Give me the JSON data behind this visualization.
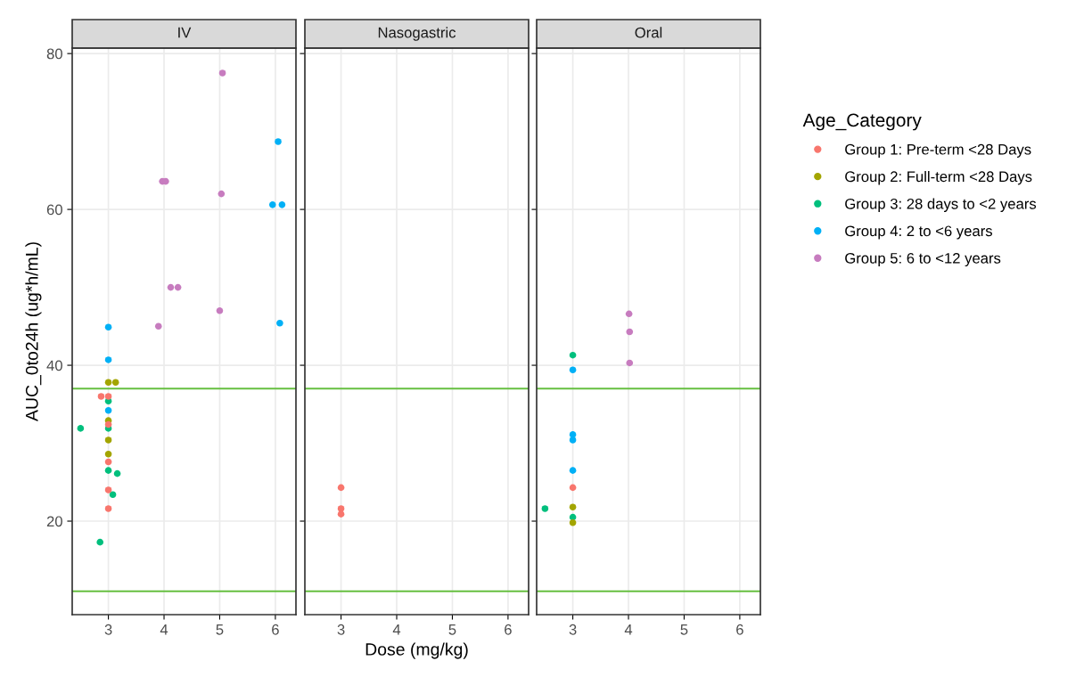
{
  "chart_data": [
    {
      "type": "scatter",
      "title": "IV",
      "ylabel": "AUC_0to24h (ug*h/mL)",
      "xlim": [
        2.35,
        6.37
      ],
      "xticks": [
        3,
        4,
        5,
        6
      ],
      "ylim": [
        8,
        80.7
      ],
      "yticks": [
        20,
        40,
        60,
        80
      ],
      "grid": true,
      "marker": "circle",
      "ref_lines": [
        {
          "axis": "y",
          "value": 37,
          "color": "#66bf40"
        },
        {
          "axis": "y",
          "value": 11,
          "color": "#66bf40"
        }
      ],
      "series": [
        {
          "color": "#f8766d",
          "x": [
            2.87,
            3,
            3,
            3,
            3,
            3
          ],
          "values": [
            36.0,
            36.0,
            32.4,
            27.6,
            24.0,
            21.6
          ]
        },
        {
          "color": "#a3a500",
          "x": [
            3,
            3.13,
            3,
            3,
            3
          ],
          "values": [
            37.8,
            37.8,
            32.9,
            30.4,
            28.6
          ]
        },
        {
          "color": "#00bf7d",
          "x": [
            3,
            3,
            2.5,
            3,
            3.16,
            3.08,
            2.85
          ],
          "values": [
            35.4,
            31.9,
            31.9,
            26.5,
            26.1,
            23.4,
            17.3
          ]
        },
        {
          "color": "#00b0f6",
          "x": [
            6.05,
            5.95,
            6.12,
            6.08,
            3,
            3,
            3
          ],
          "values": [
            68.7,
            60.6,
            60.6,
            45.4,
            44.9,
            40.7,
            34.2
          ]
        },
        {
          "color": "#c77cbf",
          "x": [
            5.05,
            3.97,
            4.03,
            5.03,
            4.12,
            4.25,
            5,
            3.9
          ],
          "values": [
            77.5,
            63.6,
            63.6,
            62,
            50,
            50,
            47,
            45
          ]
        }
      ]
    },
    {
      "type": "scatter",
      "title": "Nasogastric",
      "xlabel": "Dose (mg/kg)",
      "xlim": [
        2.35,
        6.37
      ],
      "xticks": [
        3,
        4,
        5,
        6
      ],
      "ylim": [
        8,
        80.7
      ],
      "yticks": [
        20,
        40,
        60,
        80
      ],
      "tick_labels": "x",
      "grid": true,
      "marker": "circle",
      "ref_lines": [
        {
          "axis": "y",
          "value": 37,
          "color": "#66bf40"
        },
        {
          "axis": "y",
          "value": 11,
          "color": "#66bf40"
        }
      ],
      "series": [
        {
          "color": "#f8766d",
          "x": [
            3,
            3,
            3
          ],
          "values": [
            24.3,
            21.6,
            20.9
          ]
        }
      ]
    },
    {
      "type": "scatter",
      "title": "Oral",
      "legend_title": "Age_Category",
      "legend": "right",
      "xlim": [
        2.35,
        6.37
      ],
      "xticks": [
        3,
        4,
        5,
        6
      ],
      "ylim": [
        8,
        80.7
      ],
      "yticks": [
        20,
        40,
        60,
        80
      ],
      "tick_labels": "x",
      "grid": true,
      "marker": "circle",
      "ref_lines": [
        {
          "axis": "y",
          "value": 37,
          "color": "#66bf40"
        },
        {
          "axis": "y",
          "value": 11,
          "color": "#66bf40"
        }
      ],
      "series": [
        {
          "name": "Group 1: Pre-term <28 Days",
          "color": "#f8766d",
          "x": [
            3
          ],
          "values": [
            24.3
          ]
        },
        {
          "name": "Group 2: Full-term <28 Days",
          "color": "#a3a500",
          "x": [
            3,
            3
          ],
          "values": [
            21.8,
            19.8
          ]
        },
        {
          "name": "Group 3: 28 days to <2 years",
          "color": "#00bf7d",
          "x": [
            3,
            2.5,
            3
          ],
          "values": [
            41.3,
            21.6,
            20.5
          ]
        },
        {
          "name": "Group 4: 2 to <6 years",
          "color": "#00b0f6",
          "x": [
            3,
            3,
            3,
            3
          ],
          "values": [
            39.4,
            31.1,
            30.4,
            26.5
          ]
        },
        {
          "name": "Group 5: 6 to <12 years",
          "color": "#c77cbf",
          "x": [
            4.01,
            4.02,
            4.02
          ],
          "values": [
            46.6,
            44.3,
            40.3
          ]
        }
      ]
    }
  ]
}
